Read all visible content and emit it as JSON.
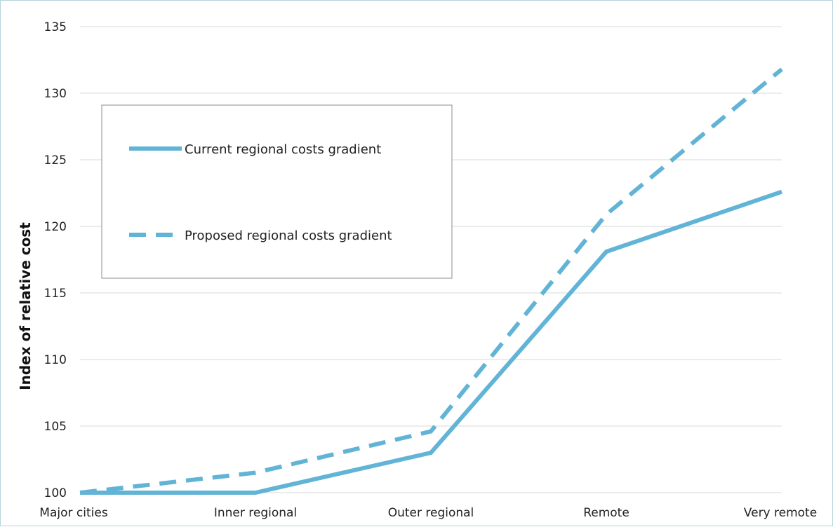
{
  "chart_data": {
    "type": "line",
    "categories": [
      "Major cities",
      "Inner regional",
      "Outer regional",
      "Remote",
      "Very remote"
    ],
    "series": [
      {
        "name": "Current regional costs gradient",
        "values": [
          100,
          100,
          103,
          118.1,
          122.6
        ],
        "style": "solid"
      },
      {
        "name": "Proposed regional costs gradient",
        "values": [
          100,
          101.5,
          104.6,
          120.9,
          131.8
        ],
        "style": "dashed"
      }
    ],
    "ylabel": "Index of relative cost",
    "xlabel": "",
    "ylim": [
      100,
      135
    ],
    "yticks": [
      100,
      105,
      110,
      115,
      120,
      125,
      130,
      135
    ],
    "grid": true,
    "legend": "upper-left",
    "color": "#62b4d6"
  }
}
